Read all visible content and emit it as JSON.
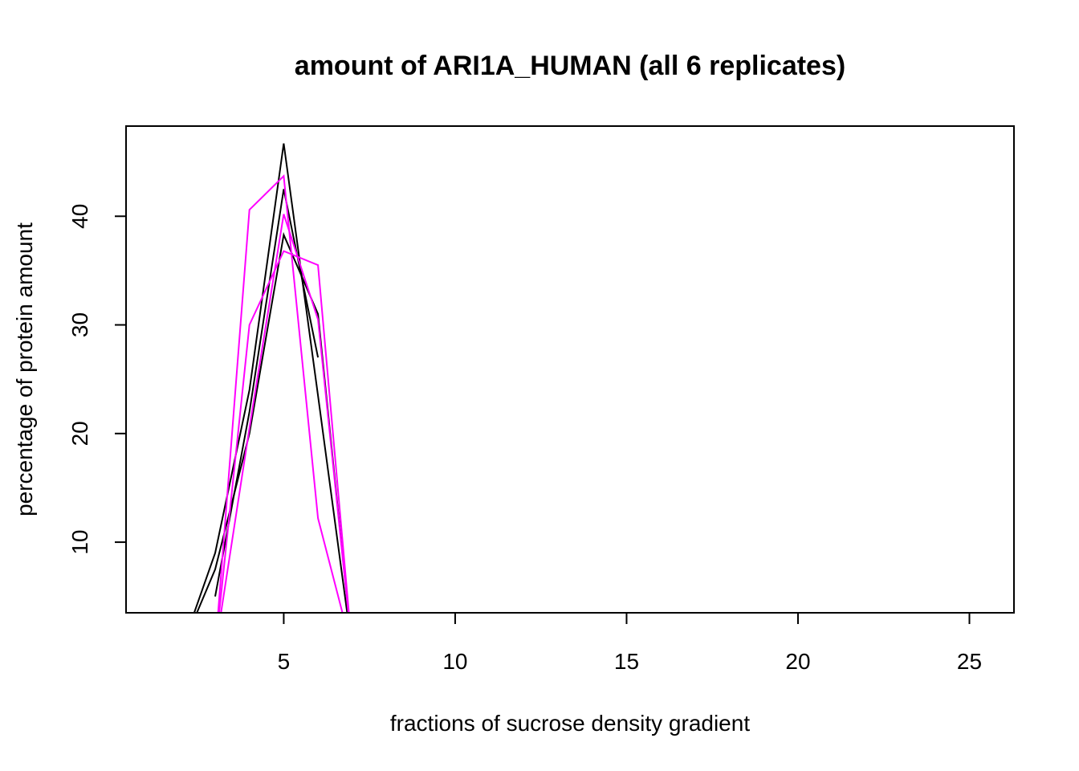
{
  "chart_data": {
    "type": "line",
    "title": "amount of ARI1A_HUMAN (all 6 replicates)",
    "xlabel": "fractions of sucrose density gradient",
    "ylabel": "percentage of protein amount",
    "xlim": [
      0.4,
      26.3
    ],
    "ylim": [
      3.5,
      48.3
    ],
    "x_ticks": [
      5,
      10,
      15,
      20,
      25
    ],
    "y_ticks": [
      10,
      20,
      30,
      40
    ],
    "grid": false,
    "legend": "none",
    "series": [
      {
        "color": "#000000",
        "x": [
          2,
          3,
          4,
          5,
          6,
          7,
          8
        ],
        "y": [
          0,
          9,
          24,
          46.7,
          23.5,
          0,
          0
        ]
      },
      {
        "color": "#000000",
        "x": [
          3,
          4,
          5,
          6
        ],
        "y": [
          5,
          22,
          42.5,
          27
        ]
      },
      {
        "color": "#000000",
        "x": [
          2,
          3,
          4,
          5,
          6,
          7,
          8
        ],
        "y": [
          0,
          7.5,
          20,
          38.3,
          31,
          0,
          0
        ]
      },
      {
        "color": "#FF00FF",
        "x": [
          2,
          3,
          4,
          5,
          6,
          7,
          8
        ],
        "y": [
          0,
          0,
          40.6,
          43.7,
          12.2,
          0,
          0
        ]
      },
      {
        "color": "#FF00FF",
        "x": [
          2,
          3,
          4,
          5,
          6,
          7,
          8
        ],
        "y": [
          0,
          0,
          30,
          36.8,
          35.5,
          0,
          0
        ]
      },
      {
        "color": "#FF00FF",
        "x": [
          2,
          3,
          4,
          5,
          6,
          7,
          8
        ],
        "y": [
          0,
          0,
          20.5,
          40.2,
          30.5,
          0,
          0
        ]
      }
    ]
  }
}
